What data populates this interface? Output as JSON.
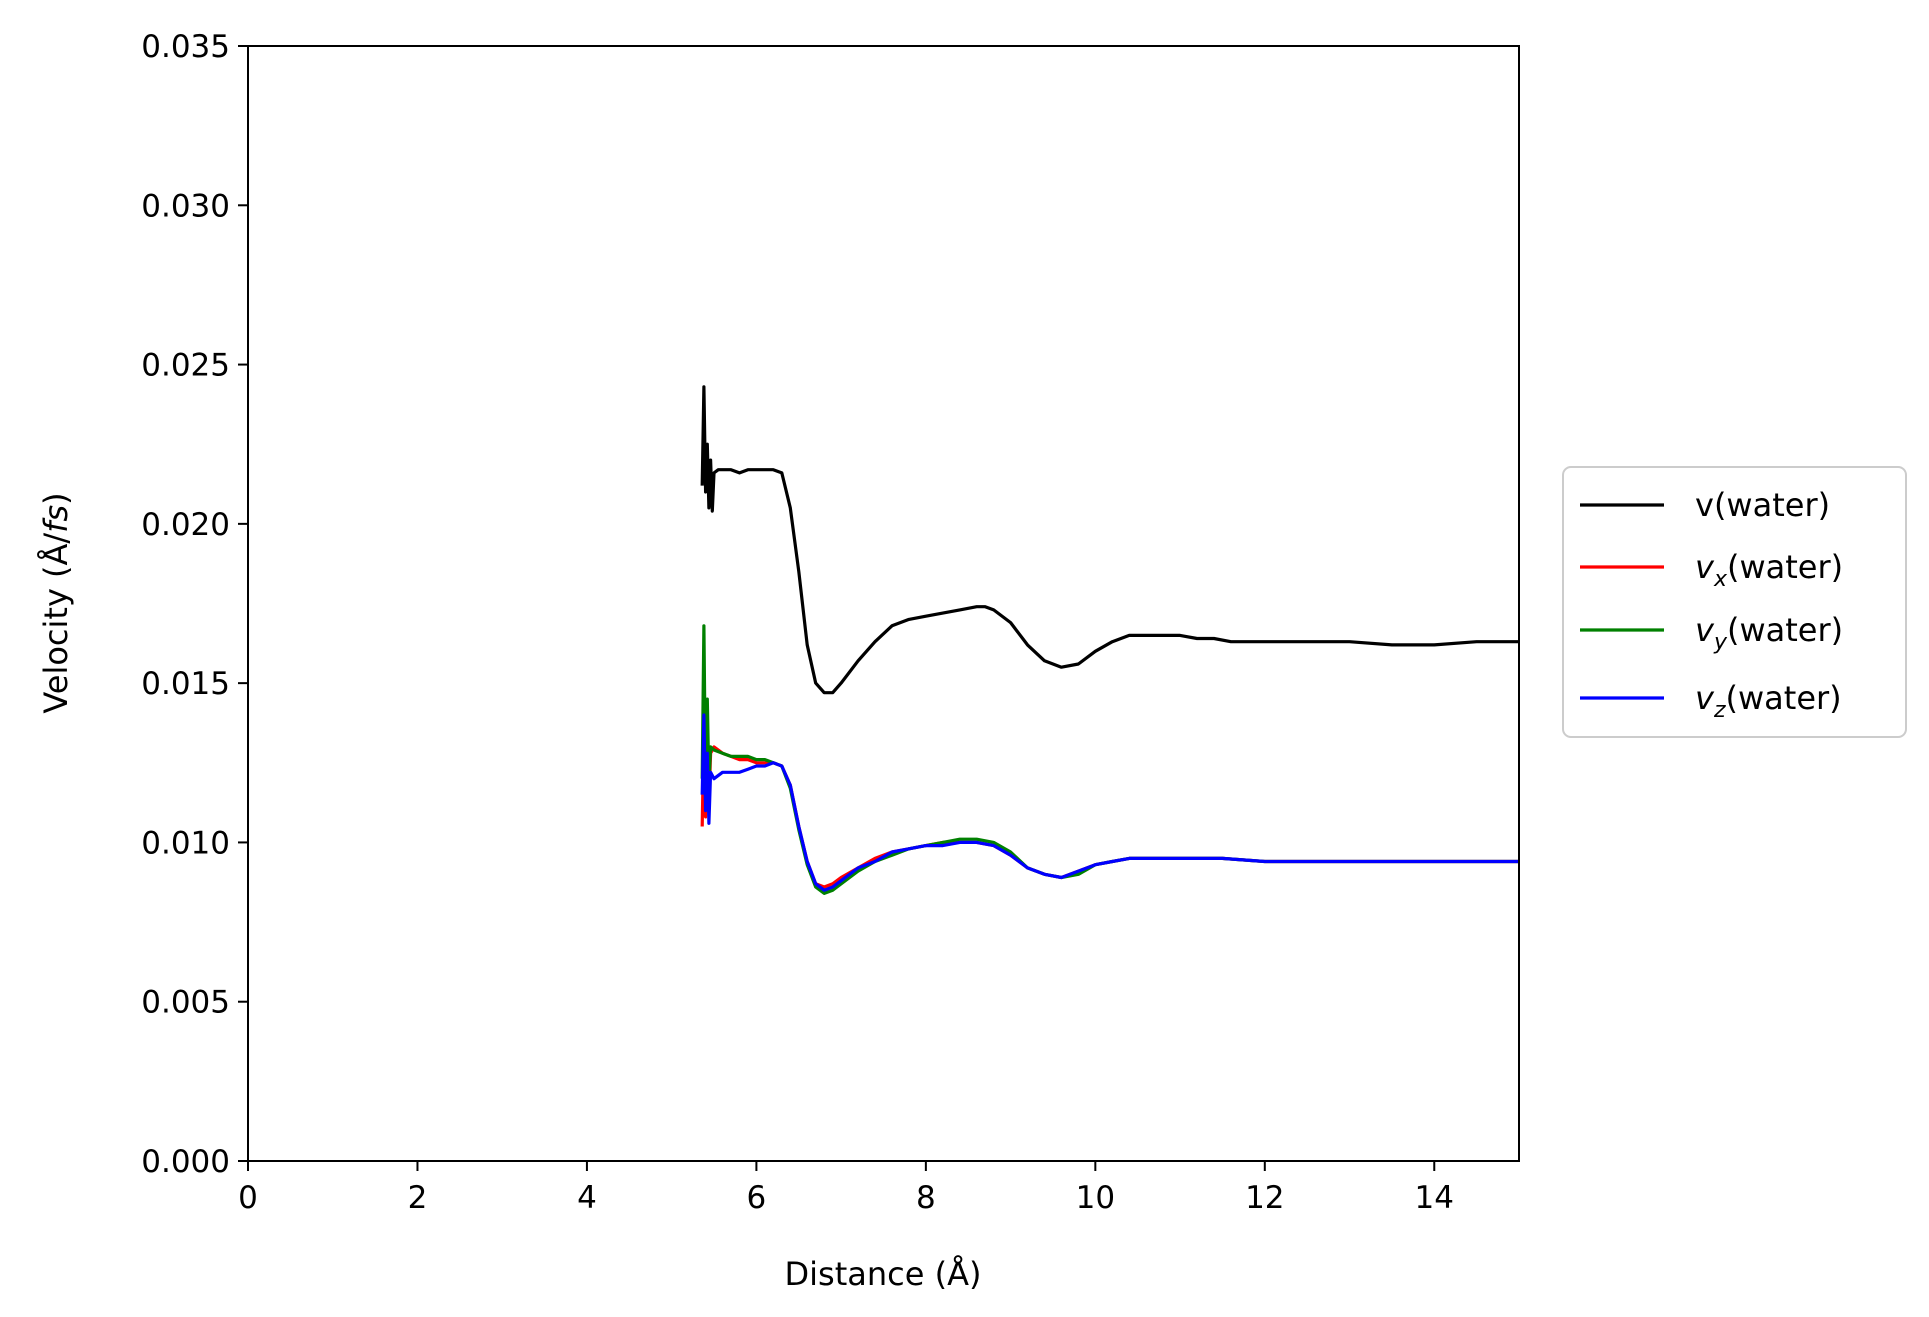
{
  "chart_data": {
    "type": "line",
    "title": "",
    "xlabel": "Distance (Å)",
    "ylabel_parts": {
      "prefix": "Velocity (Å/",
      "unit": "fs",
      "suffix": ")"
    },
    "xlim": [
      0,
      15
    ],
    "ylim": [
      0,
      0.035
    ],
    "xticks": [
      0,
      2,
      4,
      6,
      8,
      10,
      12,
      14
    ],
    "xtick_labels": [
      "0",
      "2",
      "4",
      "6",
      "8",
      "10",
      "12",
      "14"
    ],
    "yticks": [
      0,
      0.005,
      0.01,
      0.015,
      0.02,
      0.025,
      0.03,
      0.035
    ],
    "ytick_labels": [
      "0.000",
      "0.005",
      "0.010",
      "0.015",
      "0.020",
      "0.025",
      "0.030",
      "0.035"
    ],
    "grid": false,
    "legend_position": "outside-right",
    "series": [
      {
        "name": "v(water)",
        "legend": {
          "base": "v",
          "sub": "",
          "rest": "(water)",
          "italic": false
        },
        "color": "#000000",
        "x": [
          5.36,
          5.38,
          5.4,
          5.42,
          5.44,
          5.46,
          5.48,
          5.5,
          5.55,
          5.6,
          5.7,
          5.8,
          5.9,
          6.0,
          6.1,
          6.2,
          6.3,
          6.4,
          6.5,
          6.6,
          6.7,
          6.8,
          6.9,
          7.0,
          7.2,
          7.4,
          7.6,
          7.8,
          8.0,
          8.2,
          8.4,
          8.6,
          8.7,
          8.8,
          9.0,
          9.2,
          9.4,
          9.6,
          9.8,
          10.0,
          10.2,
          10.4,
          10.6,
          10.8,
          11.0,
          11.2,
          11.4,
          11.6,
          11.8,
          12.0,
          12.5,
          13.0,
          13.5,
          14.0,
          14.5,
          15.0
        ],
        "y": [
          0.0212,
          0.0243,
          0.021,
          0.0225,
          0.0205,
          0.022,
          0.0204,
          0.0216,
          0.0217,
          0.0217,
          0.0217,
          0.0216,
          0.0217,
          0.0217,
          0.0217,
          0.0217,
          0.0216,
          0.0205,
          0.0185,
          0.0162,
          0.015,
          0.0147,
          0.0147,
          0.015,
          0.0157,
          0.0163,
          0.0168,
          0.017,
          0.0171,
          0.0172,
          0.0173,
          0.0174,
          0.0174,
          0.0173,
          0.0169,
          0.0162,
          0.0157,
          0.0155,
          0.0156,
          0.016,
          0.0163,
          0.0165,
          0.0165,
          0.0165,
          0.0165,
          0.0164,
          0.0164,
          0.0163,
          0.0163,
          0.0163,
          0.0163,
          0.0163,
          0.0162,
          0.0162,
          0.0163,
          0.0163
        ]
      },
      {
        "name": "vx(water)",
        "legend": {
          "base": "v",
          "sub": "x",
          "rest": "(water)",
          "italic": true
        },
        "color": "#ff0000",
        "x": [
          5.36,
          5.38,
          5.4,
          5.42,
          5.44,
          5.46,
          5.5,
          5.6,
          5.7,
          5.8,
          5.9,
          6.0,
          6.1,
          6.2,
          6.3,
          6.4,
          6.5,
          6.6,
          6.7,
          6.8,
          6.9,
          7.0,
          7.2,
          7.4,
          7.6,
          7.8,
          8.0,
          8.2,
          8.4,
          8.6,
          8.8,
          9.0,
          9.2,
          9.4,
          9.6,
          9.8,
          10.0,
          10.2,
          10.4,
          10.6,
          10.8,
          11.0,
          11.5,
          12.0,
          12.5,
          13.0,
          13.5,
          14.0,
          14.5,
          15.0
        ],
        "y": [
          0.0105,
          0.0135,
          0.0108,
          0.013,
          0.0112,
          0.0128,
          0.013,
          0.0128,
          0.0127,
          0.0126,
          0.0126,
          0.0125,
          0.0125,
          0.0125,
          0.0124,
          0.0118,
          0.0105,
          0.0094,
          0.0087,
          0.0086,
          0.0087,
          0.0089,
          0.0092,
          0.0095,
          0.0097,
          0.0098,
          0.0099,
          0.01,
          0.01,
          0.01,
          0.0099,
          0.0096,
          0.0092,
          0.009,
          0.0089,
          0.0091,
          0.0093,
          0.0094,
          0.0095,
          0.0095,
          0.0095,
          0.0095,
          0.0095,
          0.0094,
          0.0094,
          0.0094,
          0.0094,
          0.0094,
          0.0094,
          0.0094
        ]
      },
      {
        "name": "vy(water)",
        "legend": {
          "base": "v",
          "sub": "y",
          "rest": "(water)",
          "italic": true
        },
        "color": "#008000",
        "x": [
          5.36,
          5.38,
          5.4,
          5.42,
          5.44,
          5.46,
          5.5,
          5.6,
          5.7,
          5.8,
          5.9,
          6.0,
          6.1,
          6.2,
          6.3,
          6.4,
          6.5,
          6.6,
          6.7,
          6.8,
          6.9,
          7.0,
          7.2,
          7.4,
          7.6,
          7.8,
          8.0,
          8.2,
          8.4,
          8.6,
          8.8,
          9.0,
          9.2,
          9.4,
          9.6,
          9.8,
          10.0,
          10.2,
          10.4,
          10.6,
          10.8,
          11.0,
          11.5,
          12.0,
          12.5,
          13.0,
          13.5,
          14.0,
          14.5,
          15.0
        ],
        "y": [
          0.012,
          0.0168,
          0.0115,
          0.0145,
          0.0118,
          0.013,
          0.0129,
          0.0128,
          0.0127,
          0.0127,
          0.0127,
          0.0126,
          0.0126,
          0.0125,
          0.0124,
          0.0117,
          0.0104,
          0.0093,
          0.0086,
          0.0084,
          0.0085,
          0.0087,
          0.0091,
          0.0094,
          0.0096,
          0.0098,
          0.0099,
          0.01,
          0.0101,
          0.0101,
          0.01,
          0.0097,
          0.0092,
          0.009,
          0.0089,
          0.009,
          0.0093,
          0.0094,
          0.0095,
          0.0095,
          0.0095,
          0.0095,
          0.0095,
          0.0094,
          0.0094,
          0.0094,
          0.0094,
          0.0094,
          0.0094,
          0.0094
        ]
      },
      {
        "name": "vz(water)",
        "legend": {
          "base": "v",
          "sub": "z",
          "rest": "(water)",
          "italic": true
        },
        "color": "#0000ff",
        "x": [
          5.36,
          5.38,
          5.4,
          5.42,
          5.44,
          5.46,
          5.5,
          5.6,
          5.7,
          5.8,
          5.9,
          6.0,
          6.1,
          6.2,
          6.3,
          6.4,
          6.5,
          6.6,
          6.7,
          6.8,
          6.9,
          7.0,
          7.2,
          7.4,
          7.6,
          7.8,
          8.0,
          8.2,
          8.4,
          8.6,
          8.8,
          9.0,
          9.2,
          9.4,
          9.6,
          9.8,
          10.0,
          10.2,
          10.4,
          10.6,
          10.8,
          11.0,
          11.5,
          12.0,
          12.5,
          13.0,
          13.5,
          14.0,
          14.5,
          15.0
        ],
        "y": [
          0.0115,
          0.014,
          0.011,
          0.0128,
          0.0106,
          0.0122,
          0.012,
          0.0122,
          0.0122,
          0.0122,
          0.0123,
          0.0124,
          0.0124,
          0.0125,
          0.0124,
          0.0118,
          0.0105,
          0.0094,
          0.0087,
          0.0085,
          0.0086,
          0.0088,
          0.0092,
          0.0094,
          0.0097,
          0.0098,
          0.0099,
          0.0099,
          0.01,
          0.01,
          0.0099,
          0.0096,
          0.0092,
          0.009,
          0.0089,
          0.0091,
          0.0093,
          0.0094,
          0.0095,
          0.0095,
          0.0095,
          0.0095,
          0.0095,
          0.0094,
          0.0094,
          0.0094,
          0.0094,
          0.0094,
          0.0094,
          0.0094
        ]
      }
    ]
  }
}
